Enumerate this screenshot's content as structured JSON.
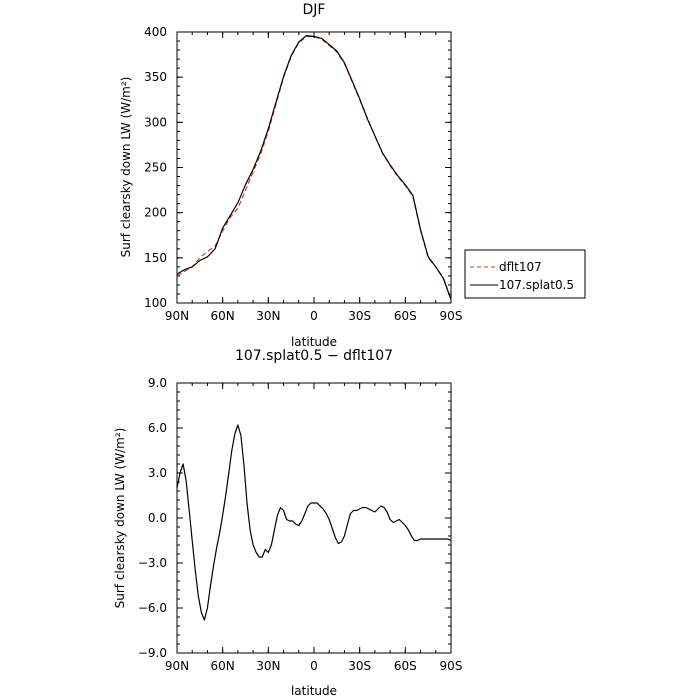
{
  "chart_data": [
    {
      "type": "line",
      "title": "DJF",
      "xlabel": "latitude",
      "ylabel": "Surf clearsky down LW (W/m²)",
      "xlim": [
        90,
        -90
      ],
      "ylim": [
        100,
        400
      ],
      "x_ticks": [
        90,
        60,
        30,
        0,
        -30,
        -60,
        -90
      ],
      "x_tick_labels": [
        "90N",
        "60N",
        "30N",
        "0",
        "30S",
        "60S",
        "90S"
      ],
      "y_ticks": [
        100,
        150,
        200,
        250,
        300,
        350,
        400
      ],
      "y_tick_labels": [
        "100",
        "150",
        "200",
        "250",
        "300",
        "350",
        "400"
      ],
      "legend_position": "right, outside",
      "series": [
        {
          "name": "dflt107",
          "color": "#e03030",
          "style": "dashed",
          "x": [
            90,
            85,
            80,
            75,
            70,
            65,
            60,
            55,
            50,
            45,
            40,
            35,
            30,
            25,
            20,
            15,
            10,
            5,
            0,
            -5,
            -10,
            -15,
            -20,
            -25,
            -30,
            -35,
            -40,
            -45,
            -50,
            -55,
            -60,
            -65,
            -70,
            -75,
            -80,
            -85,
            -90
          ],
          "y": [
            130,
            135,
            140,
            150,
            157,
            163,
            180,
            195,
            205,
            225,
            245,
            265,
            290,
            320,
            350,
            373,
            388,
            395,
            395,
            392,
            385,
            378,
            365,
            345,
            325,
            305,
            285,
            266,
            252,
            240,
            230,
            218,
            180,
            150,
            140,
            128,
            104
          ]
        },
        {
          "name": "107.splat0.5",
          "color": "#000000",
          "style": "solid",
          "x": [
            90,
            85,
            80,
            75,
            70,
            65,
            60,
            55,
            50,
            45,
            40,
            35,
            30,
            25,
            20,
            15,
            10,
            5,
            0,
            -5,
            -10,
            -15,
            -20,
            -25,
            -30,
            -35,
            -40,
            -45,
            -50,
            -55,
            -60,
            -65,
            -70,
            -75,
            -80,
            -85,
            -90
          ],
          "y": [
            132,
            137,
            140,
            147,
            151,
            160,
            183,
            197,
            211,
            231,
            248,
            268,
            293,
            322,
            351,
            374,
            389,
            396,
            395,
            393,
            386,
            379,
            366,
            346,
            326,
            304,
            285,
            266,
            253,
            241,
            231,
            219,
            181,
            151,
            140,
            127,
            104
          ]
        }
      ]
    },
    {
      "type": "line",
      "title": "107.splat0.5 − dflt107",
      "xlabel": "latitude",
      "ylabel": "Surf clearsky down LW (W/m²)",
      "xlim": [
        90,
        -90
      ],
      "ylim": [
        -9,
        9
      ],
      "x_ticks": [
        90,
        60,
        30,
        0,
        -30,
        -60,
        -90
      ],
      "x_tick_labels": [
        "90N",
        "60N",
        "30N",
        "0",
        "30S",
        "60S",
        "90S"
      ],
      "y_ticks": [
        -9,
        -6,
        -3,
        0,
        3,
        6,
        9
      ],
      "y_tick_labels": [
        "−9.0",
        "−6.0",
        "−3.0",
        "0.0",
        "3.0",
        "6.0",
        "9.0"
      ],
      "series": [
        {
          "color": "#000000",
          "style": "solid",
          "x": [
            90,
            88,
            86,
            84,
            82,
            80,
            78,
            76,
            74,
            72,
            70,
            68,
            66,
            64,
            62,
            60,
            58,
            56,
            54,
            52,
            50,
            48,
            46,
            44,
            42,
            40,
            38,
            36,
            34,
            32,
            30,
            28,
            26,
            24,
            22,
            20,
            18,
            16,
            14,
            12,
            10,
            8,
            6,
            4,
            2,
            0,
            -2,
            -4,
            -6,
            -8,
            -10,
            -12,
            -14,
            -16,
            -18,
            -20,
            -22,
            -24,
            -26,
            -28,
            -30,
            -32,
            -34,
            -36,
            -38,
            -40,
            -42,
            -44,
            -46,
            -48,
            -50,
            -52,
            -54,
            -56,
            -58,
            -60,
            -62,
            -64,
            -66,
            -68,
            -70,
            -72,
            -74,
            -76,
            -78,
            -80,
            -82,
            -84,
            -86,
            -88,
            -90
          ],
          "y": [
            2.0,
            3.0,
            3.6,
            2.5,
            0.5,
            -1.5,
            -3.5,
            -5.2,
            -6.3,
            -6.8,
            -6.0,
            -4.5,
            -3.2,
            -2.0,
            -1.0,
            0.2,
            1.5,
            3.0,
            4.5,
            5.6,
            6.2,
            5.5,
            3.5,
            1.0,
            -0.8,
            -1.8,
            -2.3,
            -2.6,
            -2.6,
            -2.1,
            -2.3,
            -1.8,
            -0.8,
            0.2,
            0.7,
            0.5,
            -0.1,
            -0.2,
            -0.2,
            -0.4,
            -0.5,
            -0.2,
            0.3,
            0.8,
            1.0,
            1.0,
            1.0,
            0.8,
            0.6,
            0.3,
            -0.1,
            -0.7,
            -1.3,
            -1.7,
            -1.6,
            -1.2,
            -0.4,
            0.3,
            0.5,
            0.5,
            0.6,
            0.7,
            0.7,
            0.6,
            0.5,
            0.4,
            0.6,
            0.8,
            0.7,
            0.4,
            -0.1,
            -0.3,
            -0.2,
            -0.1,
            -0.3,
            -0.5,
            -0.8,
            -1.2,
            -1.5,
            -1.5,
            -1.4,
            -1.4,
            -1.4,
            -1.4,
            -1.4,
            -1.4,
            -1.4,
            -1.4,
            -1.4,
            -1.4,
            -1.5
          ]
        }
      ]
    }
  ]
}
